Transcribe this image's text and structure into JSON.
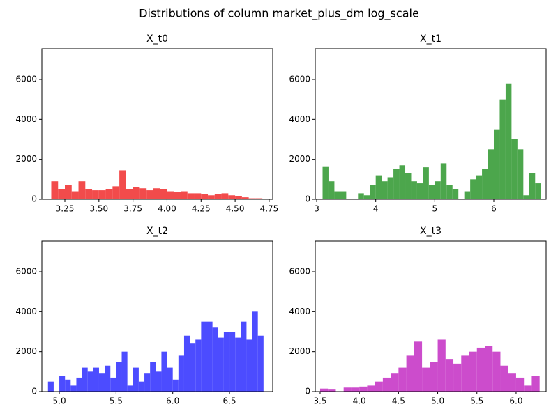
{
  "title": "Distributions of column market_plus_dm log_scale",
  "chart_data": [
    {
      "type": "histogram",
      "title": "X_t0",
      "color": "#f24b4b",
      "bins": [
        3.15,
        3.2,
        3.25,
        3.3,
        3.35,
        3.4,
        3.45,
        3.5,
        3.55,
        3.6,
        3.65,
        3.7,
        3.75,
        3.8,
        3.85,
        3.9,
        3.95,
        4.0,
        4.05,
        4.1,
        4.15,
        4.2,
        4.25,
        4.3,
        4.35,
        4.4,
        4.45,
        4.5,
        4.55,
        4.6,
        4.65,
        4.7
      ],
      "values": [
        900,
        500,
        700,
        400,
        900,
        500,
        450,
        450,
        500,
        650,
        1450,
        500,
        600,
        550,
        450,
        550,
        500,
        400,
        350,
        400,
        300,
        300,
        250,
        200,
        250,
        300,
        200,
        150,
        100,
        50,
        50
      ],
      "xlim": [
        3.081,
        4.776
      ],
      "ylim": [
        0,
        7535
      ],
      "xticks": [
        3.25,
        {
          "value": 3.5,
          "label": "3.50"
        },
        3.75,
        {
          "value": 4,
          "label": "4.00"
        },
        4.25,
        {
          "value": 4.5,
          "label": "4.50"
        },
        4.75
      ],
      "yticks": [
        0,
        2000,
        4000,
        6000
      ]
    },
    {
      "type": "histogram",
      "title": "X_t1",
      "color": "#4ca64c",
      "bins": [
        3.1,
        3.2,
        3.3,
        3.4,
        3.5,
        3.6,
        3.7,
        3.8,
        3.9,
        4.0,
        4.1,
        4.2,
        4.3,
        4.4,
        4.5,
        4.6,
        4.7,
        4.8,
        4.9,
        5.0,
        5.1,
        5.2,
        5.3,
        5.4,
        5.5,
        5.6,
        5.7,
        5.8,
        5.9,
        6.0,
        6.1,
        6.2,
        6.3,
        6.4,
        6.5,
        6.6,
        6.7,
        6.8
      ],
      "values": [
        1650,
        900,
        400,
        400,
        0,
        0,
        300,
        200,
        700,
        1200,
        900,
        1100,
        1500,
        1700,
        1300,
        900,
        800,
        1600,
        700,
        900,
        1800,
        700,
        500,
        0,
        400,
        1000,
        1200,
        1500,
        2500,
        3500,
        5000,
        5800,
        3000,
        2500,
        200,
        1300,
        800
      ],
      "xlim": [
        2.976,
        6.886
      ],
      "ylim": [
        0,
        7535
      ],
      "xticks": [
        3,
        4,
        5,
        6
      ],
      "yticks": [
        0,
        2000,
        4000,
        6000
      ]
    },
    {
      "type": "histogram",
      "title": "X_t2",
      "color": "#4c4cff",
      "bins": [
        4.9,
        4.95,
        5.0,
        5.05,
        5.1,
        5.15,
        5.2,
        5.25,
        5.3,
        5.35,
        5.4,
        5.45,
        5.5,
        5.55,
        5.6,
        5.65,
        5.7,
        5.75,
        5.8,
        5.85,
        5.9,
        5.95,
        6.0,
        6.05,
        6.1,
        6.15,
        6.2,
        6.25,
        6.3,
        6.35,
        6.4,
        6.45,
        6.5,
        6.55,
        6.6,
        6.65,
        6.7,
        6.75,
        6.8
      ],
      "values": [
        500,
        0,
        800,
        600,
        300,
        700,
        1200,
        1000,
        1200,
        900,
        1300,
        700,
        1500,
        2000,
        300,
        1200,
        500,
        900,
        1500,
        1000,
        2000,
        1200,
        600,
        1800,
        2800,
        2400,
        2600,
        3500,
        3500,
        3200,
        2700,
        3000,
        3000,
        2700,
        3500,
        2600,
        4000,
        2800
      ],
      "xlim": [
        4.846,
        6.881
      ],
      "ylim": [
        0,
        7535
      ],
      "xticks": [
        {
          "value": 5,
          "label": "5.0"
        },
        5.5,
        {
          "value": 6,
          "label": "6.0"
        },
        6.5
      ],
      "yticks": [
        0,
        2000,
        4000,
        6000
      ]
    },
    {
      "type": "histogram",
      "title": "X_t3",
      "color": "#cc4ccc",
      "bins": [
        3.5,
        3.6,
        3.7,
        3.8,
        3.9,
        4.0,
        4.1,
        4.2,
        4.3,
        4.4,
        4.5,
        4.6,
        4.7,
        4.8,
        4.9,
        5.0,
        5.1,
        5.2,
        5.3,
        5.4,
        5.5,
        5.6,
        5.7,
        5.8,
        5.9,
        6.0,
        6.1,
        6.2,
        6.3
      ],
      "values": [
        150,
        100,
        0,
        200,
        200,
        250,
        300,
        500,
        700,
        900,
        1200,
        1800,
        2500,
        1200,
        1500,
        2600,
        1600,
        1400,
        1800,
        2000,
        2200,
        2300,
        2000,
        1300,
        900,
        700,
        300,
        800
      ],
      "xlim": [
        3.438,
        6.383
      ],
      "ylim": [
        0,
        7535
      ],
      "xticks": [
        3.5,
        {
          "value": 4,
          "label": "4.0"
        },
        4.5,
        {
          "value": 5,
          "label": "5.0"
        },
        5.5,
        {
          "value": 6,
          "label": "6.0"
        }
      ],
      "yticks": [
        0,
        2000,
        4000,
        6000
      ]
    }
  ]
}
